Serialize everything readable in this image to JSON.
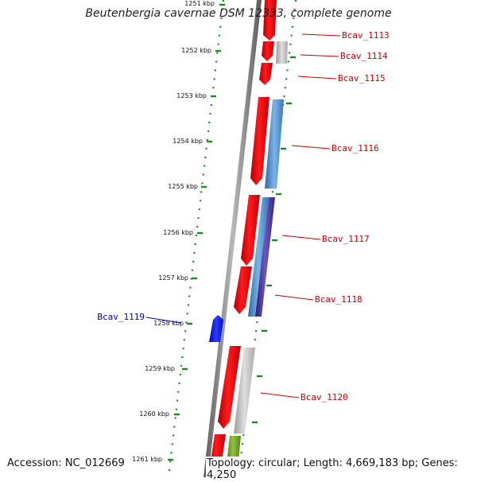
{
  "title": "Beutenbergia cavernae DSM 12333, complete genome",
  "footer": {
    "accession": "Accession: NC_012669",
    "stats": "Topology: circular; Length: 4,669,183 bp; Genes: 4,250"
  },
  "colors": {
    "forward_gene": "#e8000c",
    "reverse_gray": "#b8b8b8",
    "reverse_blue": "#4a8cc8",
    "reverse_purple": "#4a3a9a",
    "reverse_olive": "#6e9a28",
    "highlight_gene": "#0a14e8",
    "tick_green": "#1a8a1a",
    "label_red": "#c80000",
    "label_blue": "#0000b0",
    "backbone": "#7a7a7a"
  },
  "kbp_ticks": [
    "1251 kbp",
    "1252 kbp",
    "1253 kbp",
    "1254 kbp",
    "1255 kbp",
    "1256 kbp",
    "1257 kbp",
    "1258 kbp",
    "1259 kbp",
    "1260 kbp",
    "1261 kbp"
  ],
  "gene_labels": [
    {
      "id": "Bcav_1113",
      "side": "right"
    },
    {
      "id": "Bcav_1114",
      "side": "right"
    },
    {
      "id": "Bcav_1115",
      "side": "right"
    },
    {
      "id": "Bcav_1116",
      "side": "right"
    },
    {
      "id": "Bcav_1117",
      "side": "right"
    },
    {
      "id": "Bcav_1118",
      "side": "right"
    },
    {
      "id": "Bcav_1119",
      "side": "left"
    },
    {
      "id": "Bcav_1120",
      "side": "right"
    }
  ]
}
